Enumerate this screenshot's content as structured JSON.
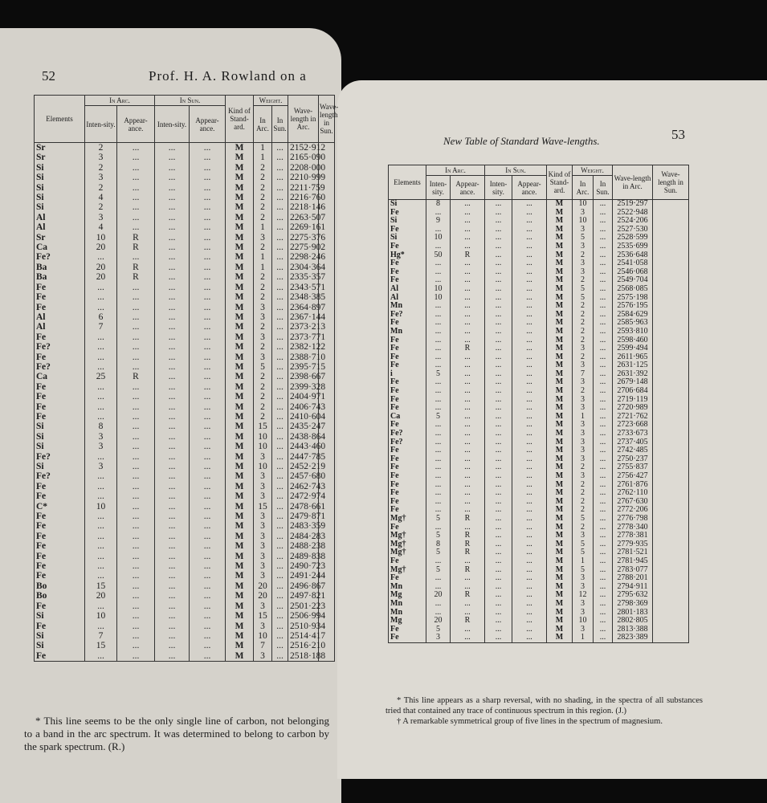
{
  "left_page": {
    "page_number": "52",
    "running_head": "Prof. H. A. Rowland on a",
    "footnotes": [
      "* This line seems to be the only single line of carbon, not belonging to a band in the arc spectrum. It was determined to belong to carbon by the spark spectrum. (R.)"
    ]
  },
  "right_page": {
    "page_number": "53",
    "running_head": "New Table of Standard Wave-lengths.",
    "footnotes": [
      "* This line appears as a sharp reversal, with no shading, in the spectra of all substances tried that contained any trace of continuous spectrum in this region. (J.)",
      "† A remarkable symmetrical group of five lines in the spectrum of magnesium."
    ]
  },
  "headers": {
    "elements": "Elements",
    "in_arc": "In Arc.",
    "in_sun": "In Sun.",
    "intensity": "Inten-sity.",
    "appearance": "Appear-ance.",
    "kind": "Kind of Stand-ard.",
    "weight": "Weight.",
    "weight_arc": "In Arc.",
    "weight_sun": "In Sun.",
    "wl_arc": "Wave-length in Arc.",
    "wl_sun": "Wave-length in Sun."
  },
  "blank": "...",
  "kind_value": "M",
  "left_rows": [
    [
      "Sr",
      "2",
      "...",
      "1",
      "2152·912"
    ],
    [
      "Sr",
      "3",
      "...",
      "1",
      "2165·090"
    ],
    [
      "Si",
      "2",
      "...",
      "2",
      "2208·000"
    ],
    [
      "Si",
      "3",
      "...",
      "2",
      "2210·999"
    ],
    [
      "Si",
      "2",
      "...",
      "2",
      "2211·759"
    ],
    [
      "Si",
      "4",
      "...",
      "2",
      "2216·760"
    ],
    [
      "Si",
      "2",
      "...",
      "2",
      "2218·146"
    ],
    [
      "Al",
      "3",
      "...",
      "2",
      "2263·507"
    ],
    [
      "Al",
      "4",
      "...",
      "1",
      "2269·161"
    ],
    [
      "Sr",
      "10",
      "R",
      "3",
      "2275·376"
    ],
    [
      "Ca",
      "20",
      "R",
      "2",
      "2275·902"
    ],
    [
      "Fe?",
      "...",
      "...",
      "1",
      "2298·246"
    ],
    [
      "Ba",
      "20",
      "R",
      "1",
      "2304·364"
    ],
    [
      "Ba",
      "20",
      "R",
      "2",
      "2335·357"
    ],
    [
      "Fe",
      "...",
      "...",
      "2",
      "2343·571"
    ],
    [
      "Fe",
      "...",
      "...",
      "2",
      "2348·385"
    ],
    [
      "Fe",
      "...",
      "...",
      "3",
      "2364·897"
    ],
    [
      "Al",
      "6",
      "...",
      "3",
      "2367·144"
    ],
    [
      "Al",
      "7",
      "...",
      "2",
      "2373·213"
    ],
    [
      "Fe",
      "...",
      "...",
      "3",
      "2373·771"
    ],
    [
      "Fe?",
      "...",
      "...",
      "2",
      "2382·122"
    ],
    [
      "Fe",
      "...",
      "...",
      "3",
      "2388·710"
    ],
    [
      "Fe?",
      "...",
      "...",
      "5",
      "2395·715"
    ],
    [
      "Ca",
      "25",
      "R",
      "2",
      "2398·667"
    ],
    [
      "Fe",
      "...",
      "...",
      "2",
      "2399·328"
    ],
    [
      "Fe",
      "...",
      "...",
      "2",
      "2404·971"
    ],
    [
      "Fe",
      "...",
      "...",
      "2",
      "2406·743"
    ],
    [
      "Fe",
      "...",
      "...",
      "2",
      "2410·604"
    ],
    [
      "Si",
      "8",
      "...",
      "15",
      "2435·247"
    ],
    [
      "Si",
      "3",
      "...",
      "10",
      "2438·864"
    ],
    [
      "Si",
      "3",
      "...",
      "10",
      "2443·460"
    ],
    [
      "Fe?",
      "...",
      "...",
      "3",
      "2447·785"
    ],
    [
      "Si",
      "3",
      "...",
      "10",
      "2452·219"
    ],
    [
      "Fe?",
      "...",
      "...",
      "3",
      "2457·680"
    ],
    [
      "Fe",
      "...",
      "...",
      "3",
      "2462·743"
    ],
    [
      "Fe",
      "...",
      "...",
      "3",
      "2472·974"
    ],
    [
      "C*",
      "10",
      "...",
      "15",
      "2478·661"
    ],
    [
      "Fe",
      "...",
      "...",
      "3",
      "2479·871"
    ],
    [
      "Fe",
      "...",
      "...",
      "3",
      "2483·359"
    ],
    [
      "Fe",
      "...",
      "...",
      "3",
      "2484·283"
    ],
    [
      "Fe",
      "...",
      "...",
      "3",
      "2488·238"
    ],
    [
      "Fe",
      "...",
      "...",
      "3",
      "2489·838"
    ],
    [
      "Fe",
      "...",
      "...",
      "3",
      "2490·723"
    ],
    [
      "Fe",
      "...",
      "...",
      "3",
      "2491·244"
    ],
    [
      "Bo",
      "15",
      "...",
      "20",
      "2496·867"
    ],
    [
      "Bo",
      "20",
      "...",
      "20",
      "2497·821"
    ],
    [
      "Fe",
      "...",
      "...",
      "3",
      "2501·223"
    ],
    [
      "Si",
      "10",
      "...",
      "15",
      "2506·994"
    ],
    [
      "Fe",
      "...",
      "...",
      "3",
      "2510·934"
    ],
    [
      "Si",
      "7",
      "...",
      "10",
      "2514·417"
    ],
    [
      "Si",
      "15",
      "...",
      "7",
      "2516·210"
    ],
    [
      "Fe",
      "...",
      "...",
      "3",
      "2518·188"
    ]
  ],
  "right_rows": [
    [
      "Si",
      "8",
      "...",
      "10",
      "2519·297"
    ],
    [
      "Fe",
      "...",
      "...",
      "3",
      "2522·948"
    ],
    [
      "Si",
      "9",
      "...",
      "10",
      "2524·206"
    ],
    [
      "Fe",
      "...",
      "...",
      "3",
      "2527·530"
    ],
    [
      "Si",
      "10",
      "...",
      "5",
      "2528·599"
    ],
    [
      "Fe",
      "...",
      "...",
      "3",
      "2535·699"
    ],
    [
      "Hg*",
      "50",
      "R",
      "2",
      "2536·648"
    ],
    [
      "Fe",
      "...",
      "...",
      "3",
      "2541·058"
    ],
    [
      "Fe",
      "...",
      "...",
      "3",
      "2546·068"
    ],
    [
      "Fe",
      "...",
      "...",
      "2",
      "2549·704"
    ],
    [
      "Al",
      "10",
      "...",
      "5",
      "2568·085"
    ],
    [
      "Al",
      "10",
      "...",
      "5",
      "2575·198"
    ],
    [
      "Mn",
      "...",
      "...",
      "2",
      "2576·195"
    ],
    [
      "Fe?",
      "...",
      "...",
      "2",
      "2584·629"
    ],
    [
      "Fe",
      "...",
      "...",
      "2",
      "2585·963"
    ],
    [
      "Mn",
      "...",
      "...",
      "2",
      "2593·810"
    ],
    [
      "Fe",
      "...",
      "...",
      "2",
      "2598·460"
    ],
    [
      "Fe",
      "...",
      "R",
      "3",
      "2599·494"
    ],
    [
      "Fe",
      "...",
      "...",
      "2",
      "2611·965"
    ],
    [
      "Fe",
      "...",
      "...",
      "3",
      "2631·125"
    ],
    [
      "i",
      "5",
      "...",
      "7",
      "2631·392"
    ],
    [
      "Fe",
      "...",
      "...",
      "3",
      "2679·148"
    ],
    [
      "Fe",
      "...",
      "...",
      "2",
      "2706·684"
    ],
    [
      "Fe",
      "...",
      "...",
      "3",
      "2719·119"
    ],
    [
      "Fe",
      "...",
      "...",
      "3",
      "2720·989"
    ],
    [
      "Ca",
      "5",
      "...",
      "1",
      "2721·762"
    ],
    [
      "Fe",
      "...",
      "...",
      "3",
      "2723·668"
    ],
    [
      "Fe?",
      "...",
      "...",
      "3",
      "2733·673"
    ],
    [
      "Fe?",
      "...",
      "...",
      "3",
      "2737·405"
    ],
    [
      "Fe",
      "...",
      "...",
      "3",
      "2742·485"
    ],
    [
      "Fe",
      "...",
      "...",
      "3",
      "2750·237"
    ],
    [
      "Fe",
      "...",
      "...",
      "2",
      "2755·837"
    ],
    [
      "Fe",
      "...",
      "...",
      "3",
      "2756·427"
    ],
    [
      "Fe",
      "...",
      "...",
      "2",
      "2761·876"
    ],
    [
      "Fe",
      "...",
      "...",
      "2",
      "2762·110"
    ],
    [
      "Fe",
      "...",
      "...",
      "2",
      "2767·630"
    ],
    [
      "Fe",
      "...",
      "...",
      "2",
      "2772·206"
    ],
    [
      "Mg†",
      "5",
      "R",
      "5",
      "2776·798"
    ],
    [
      "Fe",
      "...",
      "...",
      "2",
      "2778·340"
    ],
    [
      "Mg†",
      "5",
      "R",
      "3",
      "2778·381"
    ],
    [
      "Mg†",
      "8",
      "R",
      "5",
      "2779·935"
    ],
    [
      "Mg†",
      "5",
      "R",
      "5",
      "2781·521"
    ],
    [
      "Fe",
      "...",
      "...",
      "1",
      "2781·945"
    ],
    [
      "Mg†",
      "5",
      "R",
      "5",
      "2783·077"
    ],
    [
      "Fe",
      "...",
      "...",
      "3",
      "2788·201"
    ],
    [
      "Mn",
      "...",
      "...",
      "3",
      "2794·911"
    ],
    [
      "Mg",
      "20",
      "R",
      "12",
      "2795·632"
    ],
    [
      "Mn",
      "...",
      "...",
      "3",
      "2798·369"
    ],
    [
      "Mn",
      "...",
      "...",
      "3",
      "2801·183"
    ],
    [
      "Mg",
      "20",
      "R",
      "10",
      "2802·805"
    ],
    [
      "Fe",
      "5",
      "...",
      "3",
      "2813·388"
    ],
    [
      "Fe",
      "3",
      "...",
      "1",
      "2823·389"
    ]
  ]
}
